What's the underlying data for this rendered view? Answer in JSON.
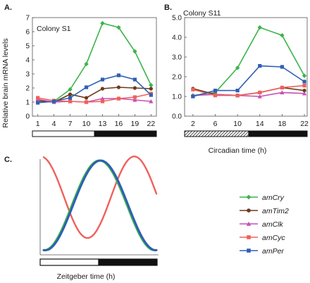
{
  "y_axis_title": "Relative brain mRNA levels",
  "chart_data": [
    {
      "panel": "A.",
      "type": "line",
      "subtitle": "Colony S1",
      "x": [
        1,
        4,
        7,
        10,
        13,
        16,
        19,
        22
      ],
      "x_tick_labels": [
        "1",
        "4",
        "7",
        "10",
        "13",
        "16",
        "19",
        "22"
      ],
      "xlim": [
        0,
        23
      ],
      "ylim": [
        0,
        7
      ],
      "y_ticks": [
        0,
        1,
        2,
        3,
        4,
        5,
        6,
        7
      ],
      "light_dark_bar": {
        "light": [
          0,
          11.5
        ],
        "dark": [
          11.5,
          23
        ]
      },
      "series": [
        {
          "name": "amCry",
          "color": "#3cb44b",
          "marker": "diamond",
          "values": [
            1.0,
            1.05,
            1.9,
            3.7,
            6.6,
            6.3,
            4.6,
            2.2
          ]
        },
        {
          "name": "amTim2",
          "color": "#6b3a1e",
          "marker": "circle",
          "values": [
            1.1,
            1.0,
            1.55,
            1.3,
            1.95,
            2.05,
            2.0,
            1.95
          ]
        },
        {
          "name": "amClk",
          "color": "#c94fb5",
          "marker": "triangle",
          "values": [
            1.2,
            1.0,
            1.05,
            1.0,
            1.25,
            1.25,
            1.15,
            1.05
          ]
        },
        {
          "name": "amCyc",
          "color": "#f0605b",
          "marker": "square",
          "values": [
            1.3,
            1.1,
            1.05,
            1.0,
            1.05,
            1.25,
            1.35,
            1.6
          ]
        },
        {
          "name": "amPer",
          "color": "#2e5fb5",
          "marker": "square",
          "values": [
            0.95,
            1.05,
            1.3,
            2.05,
            2.6,
            2.9,
            2.6,
            1.5
          ]
        }
      ]
    },
    {
      "panel": "B.",
      "type": "line",
      "subtitle": "Colony S11",
      "x": [
        2,
        6,
        10,
        14,
        18,
        22
      ],
      "x_tick_labels": [
        "2",
        "6",
        "10",
        "14",
        "18",
        "22"
      ],
      "xlim": [
        0.5,
        22.5
      ],
      "ylim": [
        0,
        5
      ],
      "y_ticks": [
        0.0,
        1.0,
        2.0,
        3.0,
        4.0,
        5.0
      ],
      "y_tick_labels": [
        "0.0",
        "1.0",
        "2.0",
        "3.0",
        "4.0",
        "5.0"
      ],
      "xlabel": "Circadian time (h)",
      "light_dark_bar": {
        "subjective_light": [
          0.5,
          12
        ],
        "dark": [
          12,
          22.5
        ]
      },
      "series": [
        {
          "name": "amCry",
          "color": "#3cb44b",
          "marker": "diamond",
          "values": [
            1.05,
            1.2,
            2.45,
            4.5,
            4.1,
            2.05
          ]
        },
        {
          "name": "amTim2",
          "color": "#6b3a1e",
          "marker": "circle",
          "values": [
            1.4,
            1.1,
            1.05,
            1.2,
            1.45,
            1.3
          ]
        },
        {
          "name": "amClk",
          "color": "#c94fb5",
          "marker": "triangle",
          "values": [
            1.05,
            1.1,
            1.05,
            1.0,
            1.2,
            1.15
          ]
        },
        {
          "name": "amCyc",
          "color": "#f0605b",
          "marker": "square",
          "values": [
            1.35,
            1.05,
            1.05,
            1.2,
            1.45,
            1.55
          ]
        },
        {
          "name": "amPer",
          "color": "#2e5fb5",
          "marker": "square",
          "values": [
            1.0,
            1.3,
            1.3,
            2.55,
            2.5,
            1.75
          ]
        }
      ]
    },
    {
      "panel": "C.",
      "type": "line",
      "xlabel": "Zeitgeber time (h)",
      "light_dark_bar": {
        "light": [
          0,
          0.5
        ],
        "dark": [
          0.5,
          1
        ]
      },
      "series": [
        {
          "name": "amCyc",
          "color": "#f0605b",
          "curve": "schematic"
        },
        {
          "name": "amCry",
          "color": "#3cb44b",
          "curve": "schematic"
        },
        {
          "name": "amPer",
          "color": "#2e5fb5",
          "curve": "schematic"
        }
      ]
    }
  ],
  "legend": {
    "placement": "right",
    "items": [
      {
        "name": "amCry",
        "color": "#3cb44b",
        "marker": "diamond"
      },
      {
        "name": "amTim2",
        "color": "#6b3a1e",
        "marker": "circle"
      },
      {
        "name": "amClk",
        "color": "#c94fb5",
        "marker": "triangle"
      },
      {
        "name": "amCyc",
        "color": "#f0605b",
        "marker": "square"
      },
      {
        "name": "amPer",
        "color": "#2e5fb5",
        "marker": "square"
      }
    ]
  }
}
